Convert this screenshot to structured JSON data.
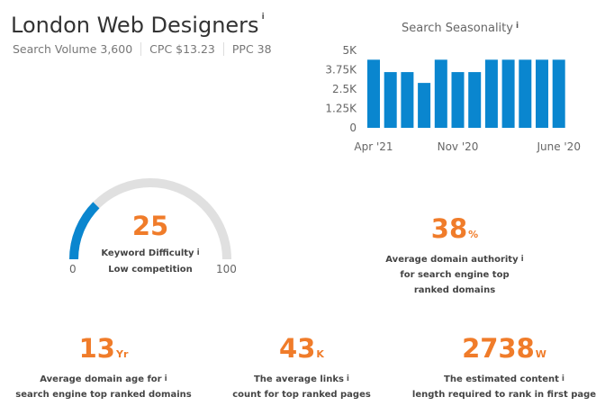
{
  "header": {
    "title": "London Web Designers",
    "info_icon": "i",
    "search_volume": "Search Volume 3,600",
    "cpc": "CPC $13.23",
    "ppc": "PPC 38"
  },
  "seasonality": {
    "title": "Search Seasonality",
    "info_icon": "i"
  },
  "chart_data": {
    "type": "bar",
    "title": "Search Seasonality",
    "categories": [
      "Apr '21",
      "",
      "",
      "",
      "",
      "Nov '20",
      "",
      "",
      "",
      "",
      "",
      "June '20"
    ],
    "x_tick_labels": [
      "Apr '21",
      "Nov '20",
      "June '20"
    ],
    "values": [
      4400,
      3600,
      3600,
      2900,
      4400,
      3600,
      3600,
      4400,
      4400,
      4400,
      4400,
      4400
    ],
    "yticks": [
      "5K",
      "3.75K",
      "2.5K",
      "1.25K",
      "0"
    ],
    "ylim": [
      0,
      5000
    ],
    "color": "#0a86cf",
    "grid": false
  },
  "difficulty": {
    "value": "25",
    "fraction": 0.25,
    "label": "Keyword Difficulty",
    "sublabel": "Low competition",
    "min": "0",
    "max": "100",
    "fill_color": "#0a86cf",
    "track_color": "#e0e0e0"
  },
  "authority": {
    "value": "38",
    "unit": "%",
    "line1": "Average domain authority",
    "line2": "for search engine top",
    "line3": "ranked domains"
  },
  "age": {
    "value": "13",
    "unit": "Yr",
    "line1": "Average domain age for",
    "line2": "search engine top ranked domains"
  },
  "links": {
    "value": "43",
    "unit": "K",
    "line1": "The average links",
    "line2": "count for top ranked pages"
  },
  "content": {
    "value": "2738",
    "unit": "W",
    "line1": "The estimated content",
    "line2": "length required to rank in first page"
  },
  "accent": "#f07c2a"
}
